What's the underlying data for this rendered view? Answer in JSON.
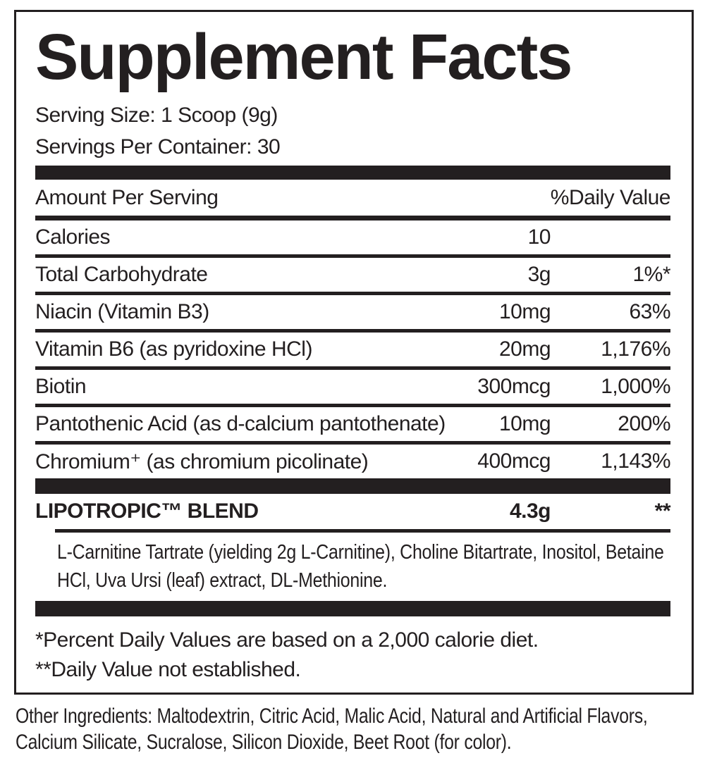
{
  "label": {
    "title": "Supplement Facts",
    "serving_size": "Serving Size: 1 Scoop (9g)",
    "servings_per_container": "Servings Per Container: 30",
    "header": {
      "amount": "Amount Per Serving",
      "daily_value": "%Daily Value"
    },
    "rows": [
      {
        "name": "Calories",
        "amount": "10",
        "dv": ""
      },
      {
        "name": "Total Carbohydrate",
        "amount": "3g",
        "dv": "1%*"
      },
      {
        "name": "Niacin (Vitamin B3)",
        "amount": "10mg",
        "dv": "63%"
      },
      {
        "name": "Vitamin B6 (as pyridoxine HCl)",
        "amount": "20mg",
        "dv": "1,176%"
      },
      {
        "name": "Biotin",
        "amount": "300mcg",
        "dv": "1,000%"
      },
      {
        "name": "Pantothenic Acid (as d-calcium pantothenate)",
        "amount": "10mg",
        "dv": "200%"
      },
      {
        "name": "Chromium⁺ (as chromium picolinate)",
        "amount": "400mcg",
        "dv": "1,143%"
      }
    ],
    "blend": {
      "name": "LIPOTROPIC™ BLEND",
      "amount": "4.3g",
      "dv": "**",
      "ingredients": "L-Carnitine Tartrate (yielding 2g L-Carnitine), Choline Bitartrate, Inositol, Betaine HCl, Uva Ursi (leaf) extract, DL-Methionine."
    },
    "footnotes": [
      "*Percent Daily Values are based on a 2,000 calorie diet.",
      "**Daily Value not established."
    ],
    "other_ingredients": "Other Ingredients: Maltodextrin, Citric Acid, Malic Acid, Natural and Artificial Flavors, Calcium Silicate, Sucralose, Silicon Dioxide, Beet Root (for color).",
    "colors": {
      "ink": "#231f20",
      "background": "#ffffff"
    }
  }
}
